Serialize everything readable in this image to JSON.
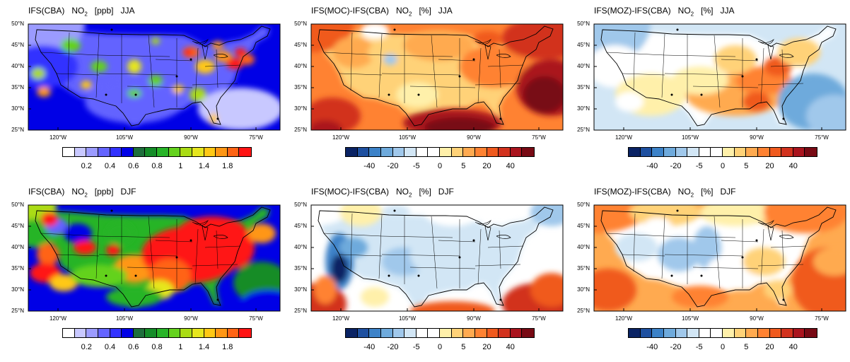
{
  "palettes": {
    "conc": [
      "#ffffff",
      "#c8c8ff",
      "#9b9bff",
      "#6464ff",
      "#3232ff",
      "#0000e6",
      "#1e6e3c",
      "#148c28",
      "#28b428",
      "#64d21e",
      "#aadc14",
      "#e6e61e",
      "#ffc814",
      "#ff9614",
      "#ff6414",
      "#ff1414"
    ],
    "diff": [
      "#0a2364",
      "#1e50a0",
      "#3c82c8",
      "#6eaadc",
      "#a0c8eb",
      "#d2e6f5",
      "#ffffff",
      "#ffffff",
      "#fff0aa",
      "#ffd278",
      "#ffaa50",
      "#ff8232",
      "#f05a1e",
      "#d2321e",
      "#aa141e",
      "#780a14"
    ]
  },
  "axes": {
    "lat_labels": [
      "50°N",
      "45°N",
      "40°N",
      "35°N",
      "30°N",
      "25°N"
    ],
    "lon_labels": [
      "120°W",
      "105°W",
      "90°W",
      "75°W"
    ]
  },
  "panels": [
    {
      "title_parts": [
        "IFS(CBA)",
        "NO",
        "2",
        "[ppb]",
        "JJA"
      ],
      "palette": "conc",
      "colorbar_labels": [
        "0.2",
        "0.4",
        "0.6",
        "0.8",
        "1",
        "1.4",
        "1.8"
      ],
      "label_slots": [
        2,
        4,
        6,
        8,
        10,
        12,
        14
      ]
    },
    {
      "title_parts": [
        "IFS(MOC)-IFS(CBA)",
        "NO",
        "2",
        "[%]",
        "JJA"
      ],
      "palette": "diff",
      "colorbar_labels": [
        "-40",
        "-20",
        "-5",
        "0",
        "5",
        "20",
        "40"
      ],
      "label_slots": [
        2,
        4,
        6,
        8,
        10,
        12,
        14
      ]
    },
    {
      "title_parts": [
        "IFS(MOZ)-IFS(CBA)",
        "NO",
        "2",
        "[%]",
        "JJA"
      ],
      "palette": "diff",
      "colorbar_labels": [
        "-40",
        "-20",
        "-5",
        "0",
        "5",
        "20",
        "40"
      ],
      "label_slots": [
        2,
        4,
        6,
        8,
        10,
        12,
        14
      ]
    },
    {
      "title_parts": [
        "IFS(CBA)",
        "NO",
        "2",
        "[ppb]",
        "DJF"
      ],
      "palette": "conc",
      "colorbar_labels": [
        "0.2",
        "0.4",
        "0.6",
        "0.8",
        "1",
        "1.4",
        "1.8"
      ],
      "label_slots": [
        2,
        4,
        6,
        8,
        10,
        12,
        14
      ]
    },
    {
      "title_parts": [
        "IFS(MOC)-IFS(CBA)",
        "NO",
        "2",
        "[%]",
        "DJF"
      ],
      "palette": "diff",
      "colorbar_labels": [
        "-40",
        "-20",
        "-5",
        "0",
        "5",
        "20",
        "40"
      ],
      "label_slots": [
        2,
        4,
        6,
        8,
        10,
        12,
        14
      ]
    },
    {
      "title_parts": [
        "IFS(MOZ)-IFS(CBA)",
        "NO",
        "2",
        "[%]",
        "DJF"
      ],
      "palette": "diff",
      "colorbar_labels": [
        "-40",
        "-20",
        "-5",
        "0",
        "5",
        "20",
        "40"
      ],
      "label_slots": [
        2,
        4,
        6,
        8,
        10,
        12,
        14
      ]
    }
  ]
}
